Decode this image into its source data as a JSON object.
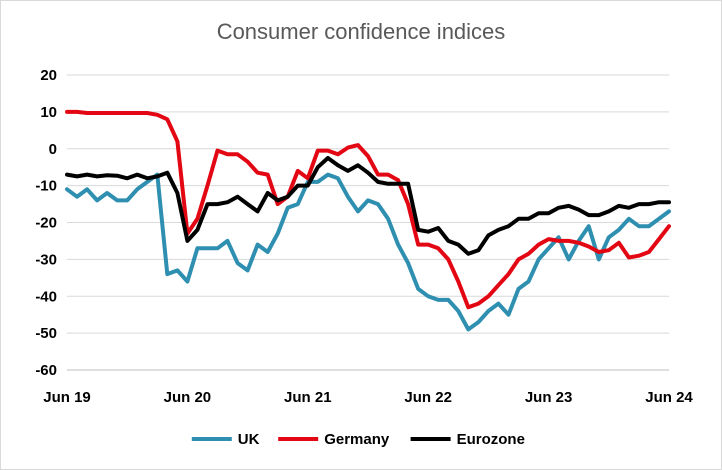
{
  "chart_data": {
    "type": "line",
    "title": "Consumer confidence indices",
    "xlabel": "",
    "ylabel": "",
    "ylim": [
      -60,
      20
    ],
    "yticks": [
      20,
      10,
      0,
      -10,
      -20,
      -30,
      -40,
      -50,
      -60
    ],
    "xlim": [
      "2019-06",
      "2024-06"
    ],
    "xticks": [
      {
        "label": "Jun 19",
        "date": "2019-06"
      },
      {
        "label": "Jun 20",
        "date": "2020-06"
      },
      {
        "label": "Jun 21",
        "date": "2021-06"
      },
      {
        "label": "Jun 22",
        "date": "2022-06"
      },
      {
        "label": "Jun 23",
        "date": "2023-06"
      },
      {
        "label": "Jun 24",
        "date": "2024-06"
      }
    ],
    "grid": true,
    "legend": "bottom",
    "series": [
      {
        "name": "UK",
        "color": "#2e8fb0",
        "points": [
          [
            "2019-06",
            -11
          ],
          [
            "2019-07",
            -13
          ],
          [
            "2019-08",
            -11
          ],
          [
            "2019-09",
            -14
          ],
          [
            "2019-10",
            -12
          ],
          [
            "2019-11",
            -14
          ],
          [
            "2019-12",
            -14
          ],
          [
            "2020-01",
            -11
          ],
          [
            "2020-02",
            -9
          ],
          [
            "2020-03",
            -7
          ],
          [
            "2020-04",
            -34
          ],
          [
            "2020-05",
            -33
          ],
          [
            "2020-06",
            -36
          ],
          [
            "2020-07",
            -27
          ],
          [
            "2020-08",
            -27
          ],
          [
            "2020-09",
            -27
          ],
          [
            "2020-10",
            -25
          ],
          [
            "2020-11",
            -31
          ],
          [
            "2020-12",
            -33
          ],
          [
            "2021-01",
            -26
          ],
          [
            "2021-02",
            -28
          ],
          [
            "2021-03",
            -23
          ],
          [
            "2021-04",
            -16
          ],
          [
            "2021-05",
            -15
          ],
          [
            "2021-06",
            -9
          ],
          [
            "2021-07",
            -9
          ],
          [
            "2021-08",
            -7
          ],
          [
            "2021-09",
            -8
          ],
          [
            "2021-10",
            -13
          ],
          [
            "2021-11",
            -17
          ],
          [
            "2021-12",
            -14
          ],
          [
            "2022-01",
            -15
          ],
          [
            "2022-02",
            -19
          ],
          [
            "2022-03",
            -26
          ],
          [
            "2022-04",
            -31
          ],
          [
            "2022-05",
            -38
          ],
          [
            "2022-06",
            -40
          ],
          [
            "2022-07",
            -41
          ],
          [
            "2022-08",
            -41
          ],
          [
            "2022-09",
            -44
          ],
          [
            "2022-10",
            -49
          ],
          [
            "2022-11",
            -47
          ],
          [
            "2022-12",
            -44
          ],
          [
            "2023-01",
            -42
          ],
          [
            "2023-02",
            -45
          ],
          [
            "2023-03",
            -38
          ],
          [
            "2023-04",
            -36
          ],
          [
            "2023-05",
            -30
          ],
          [
            "2023-06",
            -27
          ],
          [
            "2023-07",
            -24
          ],
          [
            "2023-08",
            -30
          ],
          [
            "2023-09",
            -25
          ],
          [
            "2023-10",
            -21
          ],
          [
            "2023-11",
            -30
          ],
          [
            "2023-12",
            -24
          ],
          [
            "2024-01",
            -22
          ],
          [
            "2024-02",
            -19
          ],
          [
            "2024-03",
            -21
          ],
          [
            "2024-04",
            -21
          ],
          [
            "2024-05",
            -19
          ],
          [
            "2024-06",
            -17
          ]
        ]
      },
      {
        "name": "Germany",
        "color": "#e30613",
        "points": [
          [
            "2019-06",
            10
          ],
          [
            "2019-07",
            10
          ],
          [
            "2019-08",
            9.7
          ],
          [
            "2019-09",
            9.7
          ],
          [
            "2019-10",
            9.7
          ],
          [
            "2019-11",
            9.7
          ],
          [
            "2019-12",
            9.7
          ],
          [
            "2020-01",
            9.7
          ],
          [
            "2020-02",
            9.7
          ],
          [
            "2020-03",
            9.2
          ],
          [
            "2020-04",
            8
          ],
          [
            "2020-05",
            2
          ],
          [
            "2020-06",
            -23
          ],
          [
            "2020-07",
            -19
          ],
          [
            "2020-08",
            -10
          ],
          [
            "2020-09",
            -0.5
          ],
          [
            "2020-10",
            -1.5
          ],
          [
            "2020-11",
            -1.5
          ],
          [
            "2020-12",
            -3.5
          ],
          [
            "2021-01",
            -6.5
          ],
          [
            "2021-02",
            -7
          ],
          [
            "2021-03",
            -15
          ],
          [
            "2021-04",
            -13
          ],
          [
            "2021-05",
            -6
          ],
          [
            "2021-06",
            -8
          ],
          [
            "2021-07",
            -0.5
          ],
          [
            "2021-08",
            -0.5
          ],
          [
            "2021-09",
            -1.5
          ],
          [
            "2021-10",
            0.3
          ],
          [
            "2021-11",
            1
          ],
          [
            "2021-12",
            -2
          ],
          [
            "2022-01",
            -7
          ],
          [
            "2022-02",
            -7
          ],
          [
            "2022-03",
            -8.5
          ],
          [
            "2022-04",
            -15
          ],
          [
            "2022-05",
            -26
          ],
          [
            "2022-06",
            -26
          ],
          [
            "2022-07",
            -27
          ],
          [
            "2022-08",
            -30
          ],
          [
            "2022-09",
            -36
          ],
          [
            "2022-10",
            -43
          ],
          [
            "2022-11",
            -42
          ],
          [
            "2022-12",
            -40
          ],
          [
            "2023-01",
            -37
          ],
          [
            "2023-02",
            -34
          ],
          [
            "2023-03",
            -30
          ],
          [
            "2023-04",
            -28.5
          ],
          [
            "2023-05",
            -26
          ],
          [
            "2023-06",
            -24.5
          ],
          [
            "2023-07",
            -25
          ],
          [
            "2023-08",
            -25
          ],
          [
            "2023-09",
            -25.5
          ],
          [
            "2023-10",
            -26.5
          ],
          [
            "2023-11",
            -28
          ],
          [
            "2023-12",
            -27.5
          ],
          [
            "2024-01",
            -25.5
          ],
          [
            "2024-02",
            -29.5
          ],
          [
            "2024-03",
            -29
          ],
          [
            "2024-04",
            -28
          ],
          [
            "2024-05",
            -24.5
          ],
          [
            "2024-06",
            -21
          ]
        ]
      },
      {
        "name": "Eurozone",
        "color": "#000000",
        "points": [
          [
            "2019-06",
            -7
          ],
          [
            "2019-07",
            -7.5
          ],
          [
            "2019-08",
            -7
          ],
          [
            "2019-09",
            -7.5
          ],
          [
            "2019-10",
            -7.2
          ],
          [
            "2019-11",
            -7.3
          ],
          [
            "2019-12",
            -8
          ],
          [
            "2020-01",
            -7
          ],
          [
            "2020-02",
            -8
          ],
          [
            "2020-03",
            -7.5
          ],
          [
            "2020-04",
            -6.5
          ],
          [
            "2020-05",
            -12
          ],
          [
            "2020-06",
            -25
          ],
          [
            "2020-07",
            -22
          ],
          [
            "2020-08",
            -15
          ],
          [
            "2020-09",
            -15
          ],
          [
            "2020-10",
            -14.5
          ],
          [
            "2020-11",
            -13
          ],
          [
            "2020-12",
            -15
          ],
          [
            "2021-01",
            -17
          ],
          [
            "2021-02",
            -12
          ],
          [
            "2021-03",
            -14
          ],
          [
            "2021-04",
            -13
          ],
          [
            "2021-05",
            -10
          ],
          [
            "2021-06",
            -10
          ],
          [
            "2021-07",
            -5
          ],
          [
            "2021-08",
            -2.5
          ],
          [
            "2021-09",
            -4.5
          ],
          [
            "2021-10",
            -6
          ],
          [
            "2021-11",
            -4.5
          ],
          [
            "2021-12",
            -6.5
          ],
          [
            "2022-01",
            -9
          ],
          [
            "2022-02",
            -9.5
          ],
          [
            "2022-03",
            -9.5
          ],
          [
            "2022-04",
            -9.5
          ],
          [
            "2022-05",
            -22
          ],
          [
            "2022-06",
            -22.5
          ],
          [
            "2022-07",
            -21.5
          ],
          [
            "2022-08",
            -25
          ],
          [
            "2022-09",
            -26
          ],
          [
            "2022-10",
            -28.5
          ],
          [
            "2022-11",
            -27.5
          ],
          [
            "2022-12",
            -23.5
          ],
          [
            "2023-01",
            -22
          ],
          [
            "2023-02",
            -21
          ],
          [
            "2023-03",
            -19
          ],
          [
            "2023-04",
            -19
          ],
          [
            "2023-05",
            -17.5
          ],
          [
            "2023-06",
            -17.5
          ],
          [
            "2023-07",
            -16
          ],
          [
            "2023-08",
            -15.5
          ],
          [
            "2023-09",
            -16.5
          ],
          [
            "2023-10",
            -18
          ],
          [
            "2023-11",
            -18
          ],
          [
            "2023-12",
            -17
          ],
          [
            "2024-01",
            -15.5
          ],
          [
            "2024-02",
            -16
          ],
          [
            "2024-03",
            -15
          ],
          [
            "2024-04",
            -15
          ],
          [
            "2024-05",
            -14.5
          ],
          [
            "2024-06",
            -14.5
          ]
        ]
      }
    ]
  }
}
